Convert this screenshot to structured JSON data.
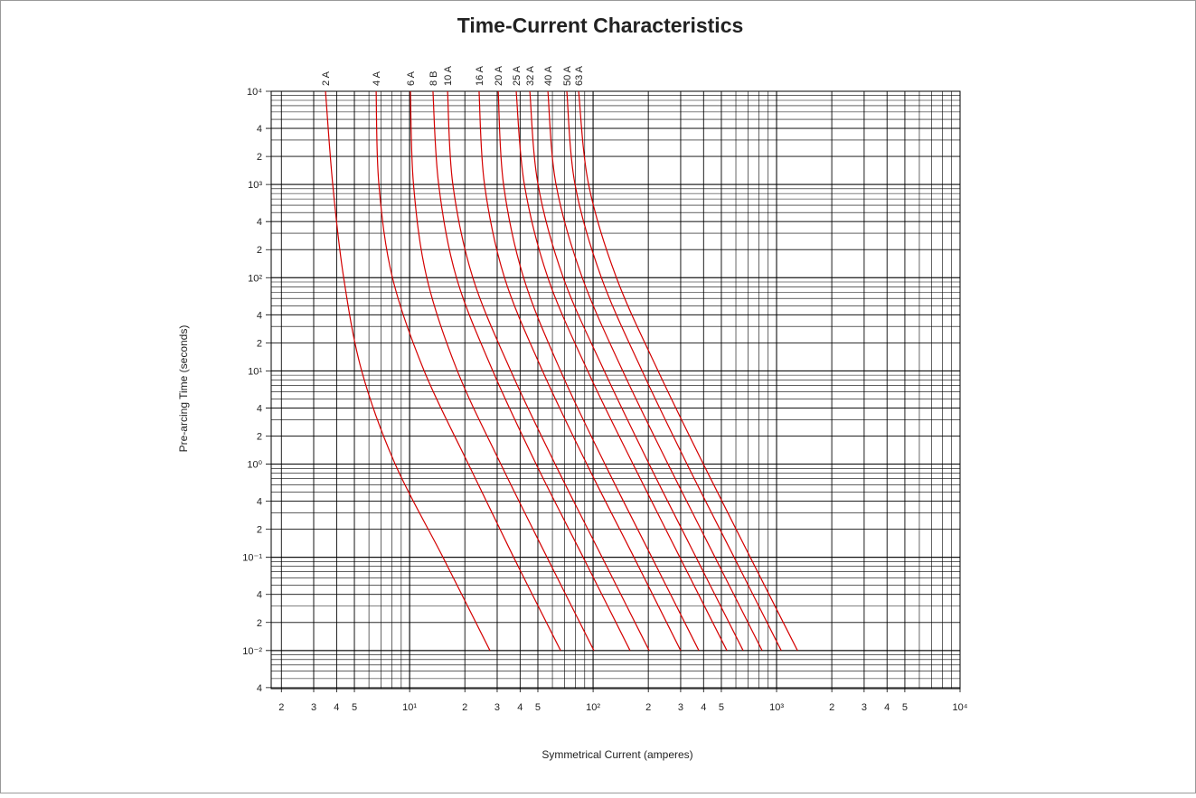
{
  "chart_data": {
    "type": "line",
    "title": "Time-Current Characteristics",
    "x_label": "Symmetrical Current (amperes)",
    "y_label": "Pre-arcing Time (seconds)",
    "log_x": true,
    "log_y": true,
    "grid": true,
    "xlim": [
      1.76,
      10000
    ],
    "ylim": [
      0.0039,
      10000
    ],
    "xticks": [
      2,
      3,
      4,
      5,
      {
        "value": 10,
        "label": "10¹"
      },
      {
        "value": 20,
        "label": "2"
      },
      {
        "value": 30,
        "label": "3"
      },
      {
        "value": 40,
        "label": "4"
      },
      {
        "value": 50,
        "label": "5"
      },
      {
        "value": 100,
        "label": "10²"
      },
      {
        "value": 200,
        "label": "2"
      },
      {
        "value": 300,
        "label": "3"
      },
      {
        "value": 400,
        "label": "4"
      },
      {
        "value": 500,
        "label": "5"
      },
      {
        "value": 1000,
        "label": "10³"
      },
      {
        "value": 2000,
        "label": "2"
      },
      {
        "value": 3000,
        "label": "3"
      },
      {
        "value": 4000,
        "label": "4"
      },
      {
        "value": 5000,
        "label": "5"
      },
      {
        "value": 10000,
        "label": "10⁴"
      }
    ],
    "yticks": [
      {
        "value": 10000,
        "label": "10⁴"
      },
      {
        "value": 4000,
        "label": "4"
      },
      {
        "value": 2000,
        "label": "2"
      },
      {
        "value": 1000,
        "label": "10³"
      },
      {
        "value": 400,
        "label": "4"
      },
      {
        "value": 200,
        "label": "2"
      },
      {
        "value": 100,
        "label": "10²"
      },
      {
        "value": 40,
        "label": "4"
      },
      {
        "value": 20,
        "label": "2"
      },
      {
        "value": 10,
        "label": "10¹"
      },
      4,
      2,
      {
        "value": 1,
        "label": "10⁰"
      },
      {
        "value": 0.4,
        "label": "4"
      },
      {
        "value": 0.2,
        "label": "2"
      },
      {
        "value": 0.1,
        "label": "10⁻¹"
      },
      {
        "value": 0.04,
        "label": "4"
      },
      {
        "value": 0.02,
        "label": "2"
      },
      {
        "value": 0.01,
        "label": "10⁻²"
      },
      {
        "value": 0.004,
        "label": "4"
      }
    ],
    "series": [
      {
        "name": "2 A",
        "color": "#d40000",
        "x": [
          3.48,
          3.81,
          4.37,
          5.48,
          8.34,
          15.2,
          27.4
        ],
        "values": [
          10000,
          1000,
          100,
          10,
          1,
          0.1,
          0.01
        ]
      },
      {
        "name": "4 A",
        "color": "#d40000",
        "x": [
          6.57,
          6.8,
          8.06,
          12.0,
          20.9,
          36.9,
          66.5
        ],
        "values": [
          10000,
          1000,
          100,
          10,
          1,
          0.1,
          0.01
        ]
      },
      {
        "name": "6 A",
        "color": "#d40000",
        "x": [
          10.1,
          10.5,
          12.4,
          18.2,
          31.4,
          56.1,
          101
        ],
        "values": [
          10000,
          1000,
          100,
          10,
          1,
          0.1,
          0.01
        ]
      },
      {
        "name": "8 B",
        "color": "#d40000",
        "x": [
          13.4,
          14.4,
          18.0,
          28.4,
          48.9,
          88.3,
          159
        ],
        "values": [
          10000,
          1000,
          100,
          10,
          1,
          0.1,
          0.01
        ]
      },
      {
        "name": "10 A",
        "color": "#d40000",
        "x": [
          16.1,
          17.2,
          22.1,
          35.6,
          62.1,
          112,
          202
        ],
        "values": [
          10000,
          1000,
          100,
          10,
          1,
          0.1,
          0.01
        ]
      },
      {
        "name": "16 A",
        "color": "#d40000",
        "x": [
          23.9,
          25.6,
          32.9,
          53.0,
          92.4,
          167,
          300
        ],
        "values": [
          10000,
          1000,
          100,
          10,
          1,
          0.1,
          0.01
        ]
      },
      {
        "name": "20 A",
        "color": "#d40000",
        "x": [
          30.4,
          32.5,
          41.8,
          66.5,
          116,
          209,
          377
        ],
        "values": [
          10000,
          1000,
          100,
          10,
          1,
          0.1,
          0.01
        ]
      },
      {
        "name": "25 A",
        "color": "#d40000",
        "x": [
          38.1,
          42.2,
          56.7,
          93.4,
          165,
          297,
          536
        ],
        "values": [
          10000,
          1000,
          100,
          10,
          1,
          0.1,
          0.01
        ]
      },
      {
        "name": "32 A",
        "color": "#d40000",
        "x": [
          45.2,
          50.1,
          68.8,
          115,
          202,
          364,
          657
        ],
        "values": [
          10000,
          1000,
          100,
          10,
          1,
          0.1,
          0.01
        ]
      },
      {
        "name": "40 A",
        "color": "#d40000",
        "x": [
          56.7,
          62.8,
          87.3,
          145,
          256,
          462,
          834
        ],
        "values": [
          10000,
          1000,
          100,
          10,
          1,
          0.1,
          0.01
        ]
      },
      {
        "name": "50 A",
        "color": "#d40000",
        "x": [
          71.9,
          79.7,
          111,
          185,
          325,
          587,
          1060
        ],
        "values": [
          10000,
          1000,
          100,
          10,
          1,
          0.1,
          0.01
        ]
      },
      {
        "name": "63 A",
        "color": "#d40000",
        "x": [
          83.4,
          94.5,
          134,
          226,
          399,
          719,
          1300
        ],
        "values": [
          10000,
          1000,
          100,
          10,
          1,
          0.1,
          0.01
        ]
      }
    ]
  }
}
